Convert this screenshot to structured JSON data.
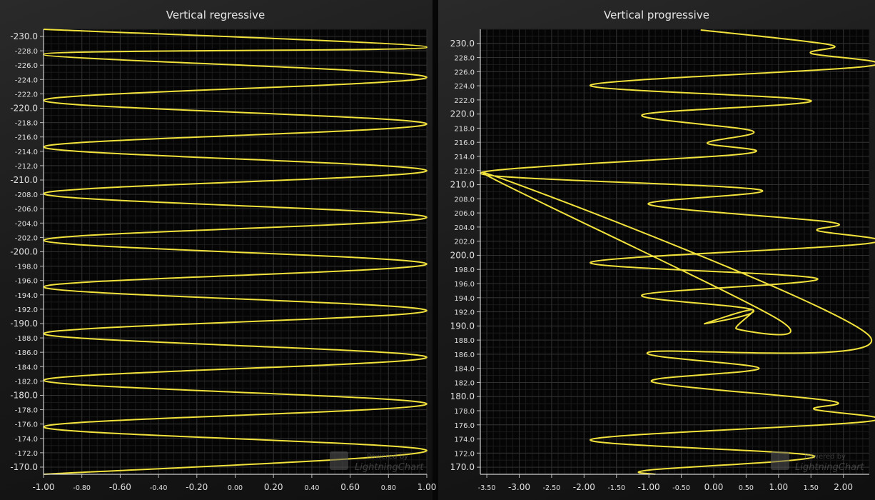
{
  "chart_data": [
    {
      "type": "line",
      "title": "Vertical regressive",
      "orientation": "vertical",
      "xlim": [
        -1.0,
        1.0
      ],
      "ylim": [
        -169,
        -231
      ],
      "y_reversed": true,
      "x_ticks": [
        "-1.00",
        "-0.80",
        "-0.60",
        "-0.40",
        "-0.20",
        "0.00",
        "0.20",
        "0.40",
        "0.60",
        "0.80",
        "1.00"
      ],
      "y_ticks": [
        "-170.0",
        "-172.0",
        "-174.0",
        "-176.0",
        "-178.0",
        "-180.0",
        "-182.0",
        "-184.0",
        "-186.0",
        "-188.0",
        "-190.0",
        "-192.0",
        "-194.0",
        "-196.0",
        "-198.0",
        "-200.0",
        "-202.0",
        "-204.0",
        "-206.0",
        "-208.0",
        "-210.0",
        "-212.0",
        "-214.0",
        "-216.0",
        "-218.0",
        "-220.0",
        "-222.0",
        "-224.0",
        "-226.0",
        "-228.0",
        "-230.0"
      ],
      "grid": true,
      "line_color": "#f2e23c",
      "series": [
        {
          "x": [
            -1.0,
            1.0,
            -1.0,
            1.0,
            -1.0,
            1.0,
            -1.0,
            1.0,
            -1.0,
            1.0,
            -1.0,
            1.0,
            -1.0,
            1.0,
            -1.0,
            1.0,
            -1.0,
            1.0,
            -1.0,
            1.0,
            -1.0
          ],
          "y": [
            -169.0,
            -172.3,
            -175.6,
            -178.8,
            -182.1,
            -185.3,
            -188.6,
            -191.8,
            -195.1,
            -198.3,
            -201.6,
            -204.8,
            -208.1,
            -211.3,
            -214.6,
            -217.8,
            -221.1,
            -224.3,
            -227.5,
            -228.5,
            -231.0
          ]
        }
      ]
    },
    {
      "type": "line",
      "title": "Vertical progressive",
      "orientation": "vertical",
      "xlim": [
        -3.6,
        2.4
      ],
      "ylim": [
        169,
        232
      ],
      "x_ticks": [
        "-3.50",
        "-3.00",
        "-2.50",
        "-2.00",
        "-1.50",
        "-1.00",
        "-0.50",
        "0.00",
        "0.50",
        "1.00",
        "1.50",
        "2.00"
      ],
      "y_ticks": [
        "170.0",
        "172.0",
        "174.0",
        "176.0",
        "178.0",
        "180.0",
        "182.0",
        "184.0",
        "186.0",
        "188.0",
        "190.0",
        "192.0",
        "194.0",
        "196.0",
        "198.0",
        "200.0",
        "202.0",
        "204.0",
        "206.0",
        "208.0",
        "210.0",
        "212.0",
        "214.0",
        "216.0",
        "218.0",
        "220.0",
        "222.0",
        "224.0",
        "226.0",
        "228.0",
        "230.0"
      ],
      "grid": true,
      "line_color": "#f2e23c",
      "series": [
        {
          "x": [
            -0.9,
            -1.0,
            1.55,
            -1.9,
            2.4,
            1.55,
            1.8,
            -0.95,
            0.7,
            -1.0,
            2.4,
            -3.55,
            1.0,
            0.35,
            0.6,
            -0.15,
            0.6,
            -1.1,
            1.6,
            -1.9,
            2.4,
            1.6,
            1.8,
            -1.0,
            0.7,
            -3.6,
            0.5,
            -0.1,
            0.6,
            -1.1,
            1.5,
            -1.9,
            2.4,
            1.5,
            1.8,
            -0.2
          ],
          "y": [
            169.0,
            169.6,
            171.6,
            173.9,
            176.5,
            178.2,
            179.4,
            182.1,
            184.0,
            186.3,
            188.6,
            211.7,
            190.9,
            189.6,
            192.3,
            190.3,
            192.3,
            194.4,
            196.7,
            199.0,
            201.7,
            203.5,
            204.7,
            207.2,
            209.3,
            211.6,
            214.4,
            215.9,
            217.6,
            219.9,
            221.9,
            224.1,
            226.8,
            228.6,
            229.8,
            231.9
          ]
        }
      ]
    }
  ],
  "watermark": {
    "line1": "Powered by",
    "line2": "LightningChart"
  }
}
